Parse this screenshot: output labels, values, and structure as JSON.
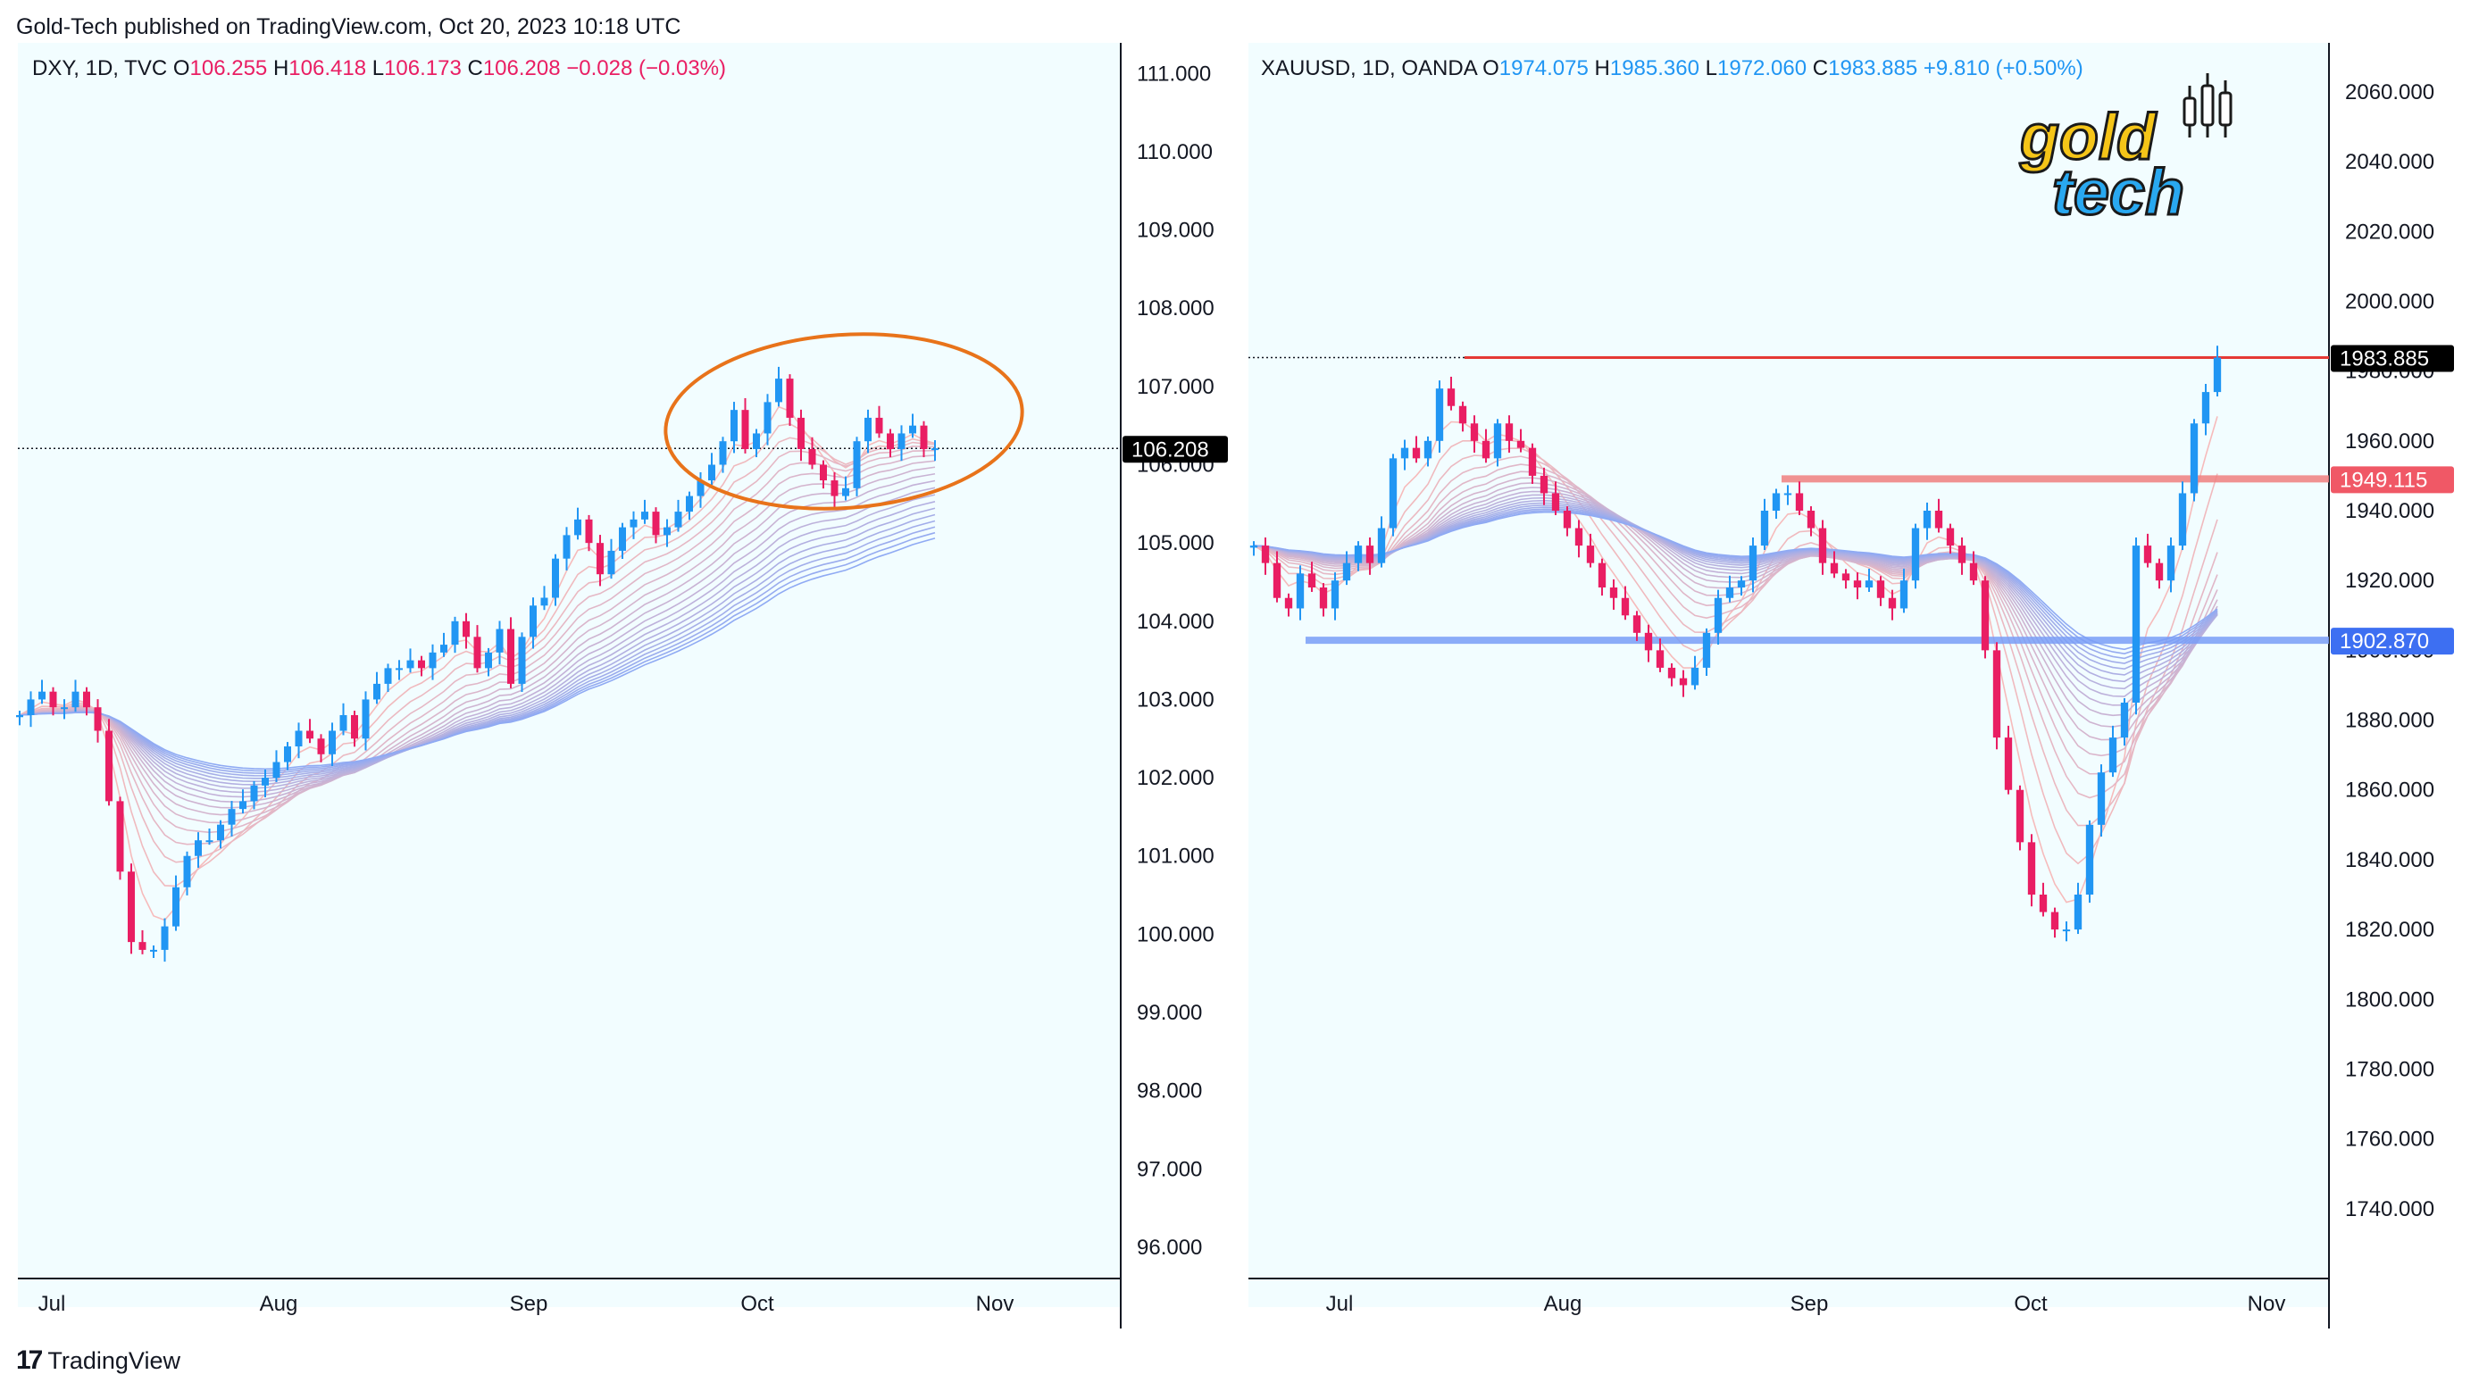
{
  "header": {
    "published": "Gold-Tech published on TradingView.com, Oct 20, 2023 10:18 UTC"
  },
  "footer": {
    "brand": "TradingView"
  },
  "colors": {
    "up": "#2196f3",
    "down": "#e91e63",
    "bg": "#f2fdff",
    "accent_orange": "#e8731a",
    "resistance": "#f08080",
    "support": "#7a9ef7"
  },
  "logo": {
    "line1": "gold",
    "line2": "tech"
  },
  "chart_data": [
    {
      "type": "candlestick",
      "symbol": "DXY",
      "interval": "1D",
      "source": "TVC",
      "ohlc_label": {
        "o": "106.255",
        "h": "106.418",
        "l": "106.173",
        "c": "106.208",
        "change": "−0.028 (−0.03%)"
      },
      "last_price_label": "106.208",
      "y_ticks": [
        "111.000",
        "110.000",
        "109.000",
        "108.000",
        "107.000",
        "106.000",
        "105.000",
        "104.000",
        "103.000",
        "102.000",
        "101.000",
        "100.000",
        "99.000",
        "98.000",
        "97.000",
        "96.000"
      ],
      "ylim": [
        95.6,
        111.3
      ],
      "x_ticks": [
        "Jul",
        "Aug",
        "Sep",
        "Oct",
        "Nov"
      ],
      "closes": [
        102.8,
        103.0,
        103.1,
        102.9,
        102.9,
        103.1,
        102.9,
        102.6,
        101.7,
        100.8,
        99.9,
        99.8,
        99.8,
        100.1,
        100.6,
        101.0,
        101.2,
        101.2,
        101.4,
        101.6,
        101.7,
        101.9,
        102.0,
        102.2,
        102.4,
        102.6,
        102.5,
        102.3,
        102.6,
        102.8,
        102.5,
        103.0,
        103.2,
        103.4,
        103.4,
        103.5,
        103.4,
        103.6,
        103.7,
        104.0,
        103.8,
        103.4,
        103.6,
        103.9,
        103.2,
        103.8,
        104.2,
        104.3,
        104.8,
        105.1,
        105.3,
        105.0,
        104.6,
        104.9,
        105.2,
        105.3,
        105.4,
        105.1,
        105.2,
        105.4,
        105.6,
        105.8,
        106.0,
        106.3,
        106.7,
        106.2,
        106.4,
        106.8,
        107.1,
        106.6,
        106.2,
        106.0,
        105.8,
        105.6,
        105.7,
        106.3,
        106.6,
        106.4,
        106.2,
        106.4,
        106.5,
        106.2,
        106.21
      ]
    },
    {
      "type": "candlestick",
      "symbol": "XAUUSD",
      "interval": "1D",
      "source": "OANDA",
      "ohlc_label": {
        "o": "1974.075",
        "h": "1985.360",
        "l": "1972.060",
        "c": "1983.885",
        "change": "+9.810 (+0.50%)"
      },
      "last_price_label": "1983.885",
      "levels": [
        {
          "label": "1983.885",
          "value": 1983.885,
          "kind": "last"
        },
        {
          "label": "1949.115",
          "value": 1949.115,
          "kind": "resistance"
        },
        {
          "label": "1902.870",
          "value": 1902.87,
          "kind": "support"
        }
      ],
      "y_ticks": [
        "2060.000",
        "2040.000",
        "2020.000",
        "2000.000",
        "1980.000",
        "1960.000",
        "1940.000",
        "1920.000",
        "1900.000",
        "1880.000",
        "1860.000",
        "1840.000",
        "1820.000",
        "1800.000",
        "1780.000",
        "1760.000",
        "1740.000"
      ],
      "ylim": [
        1720,
        2072
      ],
      "x_ticks": [
        "Jul",
        "Aug",
        "Sep",
        "Oct",
        "Nov"
      ],
      "closes": [
        1930,
        1925,
        1915,
        1912,
        1922,
        1918,
        1912,
        1920,
        1925,
        1930,
        1925,
        1935,
        1955,
        1958,
        1955,
        1960,
        1975,
        1970,
        1965,
        1960,
        1955,
        1965,
        1960,
        1958,
        1950,
        1945,
        1940,
        1935,
        1930,
        1925,
        1918,
        1915,
        1910,
        1905,
        1900,
        1895,
        1892,
        1890,
        1895,
        1905,
        1915,
        1918,
        1920,
        1930,
        1940,
        1945,
        1945,
        1940,
        1935,
        1925,
        1922,
        1920,
        1918,
        1920,
        1915,
        1912,
        1920,
        1935,
        1940,
        1935,
        1930,
        1925,
        1920,
        1900,
        1875,
        1860,
        1845,
        1830,
        1825,
        1820,
        1820,
        1830,
        1850,
        1865,
        1875,
        1885,
        1930,
        1925,
        1920,
        1930,
        1945,
        1965,
        1974,
        1983.885
      ]
    }
  ]
}
